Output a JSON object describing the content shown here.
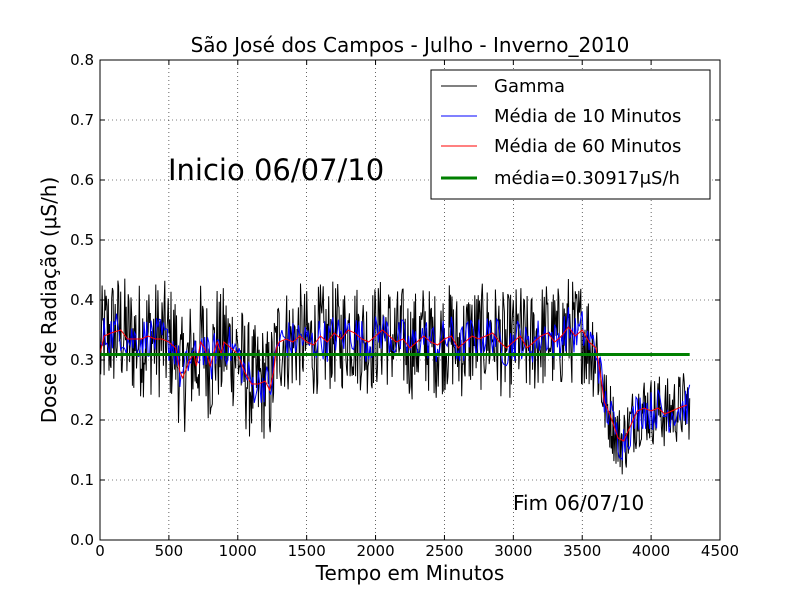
{
  "chart_data": {
    "type": "line",
    "title": "São José dos Campos - Julho - Inverno_2010",
    "xlabel": "Tempo em Minutos",
    "ylabel": "Dose de Radiação (μS/h)",
    "xlim": [
      0,
      4500
    ],
    "ylim": [
      0.0,
      0.8
    ],
    "x_ticks": [
      "0",
      "500",
      "1000",
      "1500",
      "2000",
      "2500",
      "3000",
      "3500",
      "4000",
      "4500"
    ],
    "y_ticks": [
      "0.0",
      "0.1",
      "0.2",
      "0.3",
      "0.4",
      "0.5",
      "0.6",
      "0.7",
      "0.8"
    ],
    "grid": true,
    "legend_position": "top-right",
    "series": [
      {
        "name": "Gamma",
        "color": "#000000",
        "x_range": [
          0,
          4280
        ],
        "x_step": 5,
        "segments": [
          {
            "x0": 0,
            "x1": 1270,
            "mean": 0.33,
            "spread": 0.1,
            "min": 0.13,
            "max": 0.5
          },
          {
            "x0": 1270,
            "x1": 3640,
            "mean": 0.34,
            "spread": 0.09,
            "min": 0.16,
            "max": 0.5
          },
          {
            "x0": 3640,
            "x1": 4280,
            "mean": 0.21,
            "spread": 0.06,
            "min": 0.1,
            "max": 0.41
          }
        ]
      },
      {
        "name": "Média de 10 Minutos",
        "color": "#0000ff",
        "x_range": [
          0,
          4280
        ],
        "x_step": 10,
        "noise": 0.035
      },
      {
        "name": "Média de 60 Minutos",
        "color": "#ff0000",
        "x": [
          0,
          30,
          80,
          150,
          200,
          250,
          300,
          350,
          400,
          450,
          500,
          550,
          580,
          600,
          650,
          680,
          700,
          730,
          760,
          800,
          850,
          880,
          900,
          950,
          1000,
          1050,
          1100,
          1150,
          1200,
          1230,
          1260,
          1280,
          1300,
          1350,
          1400,
          1450,
          1500,
          1550,
          1600,
          1650,
          1700,
          1750,
          1800,
          1850,
          1900,
          1950,
          2000,
          2050,
          2100,
          2150,
          2200,
          2250,
          2300,
          2350,
          2400,
          2450,
          2500,
          2550,
          2600,
          2650,
          2700,
          2750,
          2800,
          2850,
          2900,
          2950,
          3000,
          3050,
          3100,
          3150,
          3200,
          3250,
          3300,
          3350,
          3400,
          3450,
          3500,
          3550,
          3600,
          3630,
          3660,
          3700,
          3730,
          3760,
          3800,
          3850,
          3900,
          3950,
          4000,
          4050,
          4100,
          4150,
          4200,
          4260
        ],
        "y": [
          0.31,
          0.34,
          0.345,
          0.35,
          0.335,
          0.335,
          0.335,
          0.34,
          0.335,
          0.335,
          0.33,
          0.32,
          0.28,
          0.27,
          0.3,
          0.31,
          0.29,
          0.33,
          0.32,
          0.29,
          0.33,
          0.31,
          0.33,
          0.32,
          0.31,
          0.28,
          0.26,
          0.26,
          0.265,
          0.25,
          0.28,
          0.32,
          0.33,
          0.335,
          0.33,
          0.34,
          0.33,
          0.325,
          0.34,
          0.33,
          0.345,
          0.335,
          0.35,
          0.345,
          0.335,
          0.33,
          0.34,
          0.35,
          0.34,
          0.33,
          0.335,
          0.32,
          0.33,
          0.34,
          0.33,
          0.325,
          0.335,
          0.34,
          0.32,
          0.33,
          0.34,
          0.335,
          0.34,
          0.345,
          0.33,
          0.32,
          0.33,
          0.34,
          0.32,
          0.33,
          0.34,
          0.345,
          0.33,
          0.34,
          0.355,
          0.34,
          0.35,
          0.33,
          0.32,
          0.28,
          0.23,
          0.21,
          0.19,
          0.17,
          0.165,
          0.19,
          0.215,
          0.22,
          0.215,
          0.22,
          0.21,
          0.215,
          0.22,
          0.225
        ]
      },
      {
        "name": "média=0.30917μS/h",
        "color": "#008000",
        "x": [
          0,
          4280
        ],
        "y": [
          0.30917,
          0.30917
        ]
      }
    ],
    "annotations": [
      {
        "text": "Inicio 06/07/10",
        "x": 500,
        "y": 0.6
      },
      {
        "text": "Fim 06/07/10",
        "x": 3000,
        "y": 0.05
      }
    ]
  }
}
